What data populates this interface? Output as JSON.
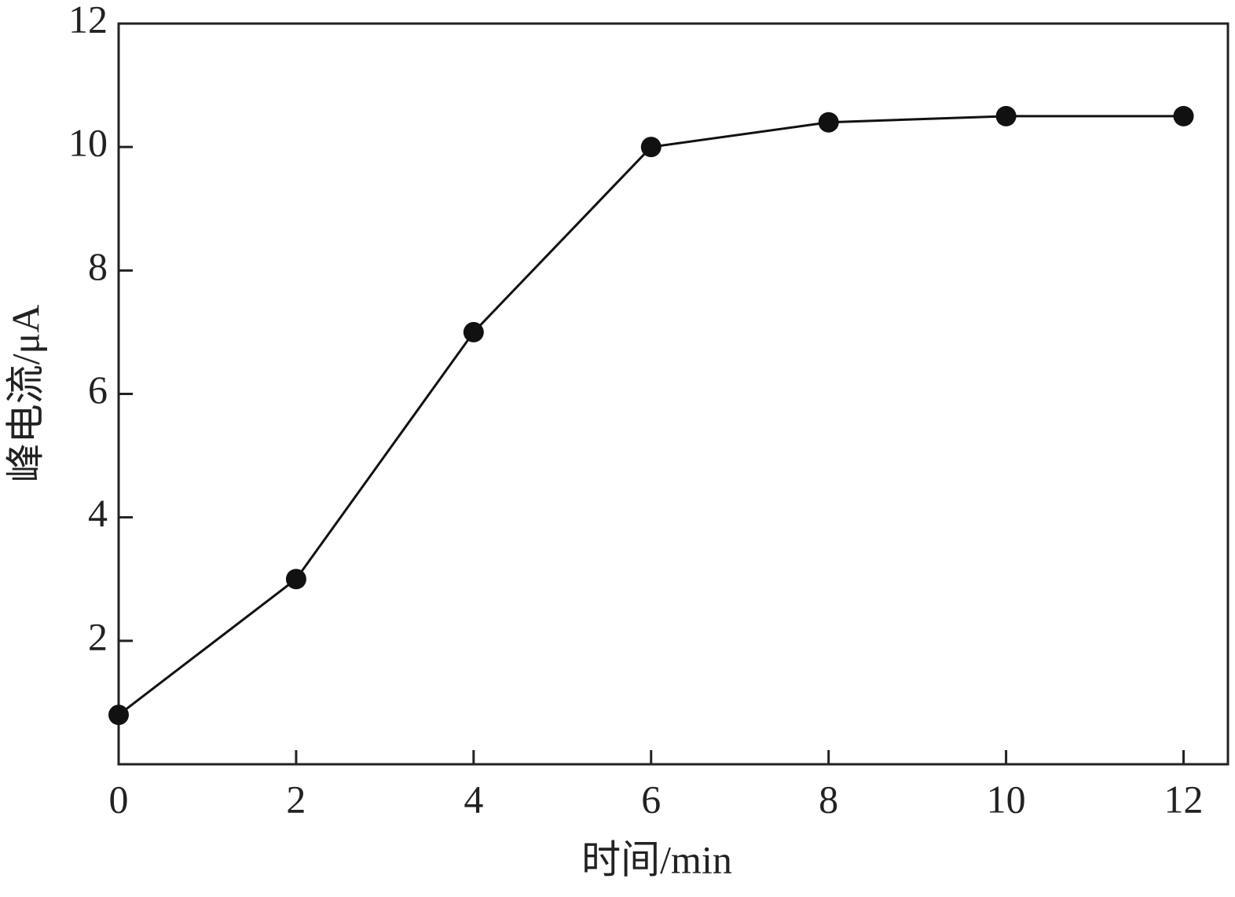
{
  "chart_data": {
    "type": "line",
    "x_label": "时间/min",
    "y_label": "峰电流/μA",
    "x": [
      0,
      2,
      4,
      6,
      8,
      10,
      12
    ],
    "series": [
      {
        "color": "#111111",
        "values": [
          0.8,
          3.0,
          7.0,
          10.0,
          10.4,
          10.5,
          10.5
        ]
      }
    ],
    "xlim": [
      0,
      12.5
    ],
    "xticks": [
      0,
      2,
      4,
      6,
      8,
      10,
      12
    ],
    "ylim": [
      0,
      12
    ],
    "yticks": [
      2,
      4,
      6,
      8,
      10,
      12
    ],
    "grid": false
  }
}
